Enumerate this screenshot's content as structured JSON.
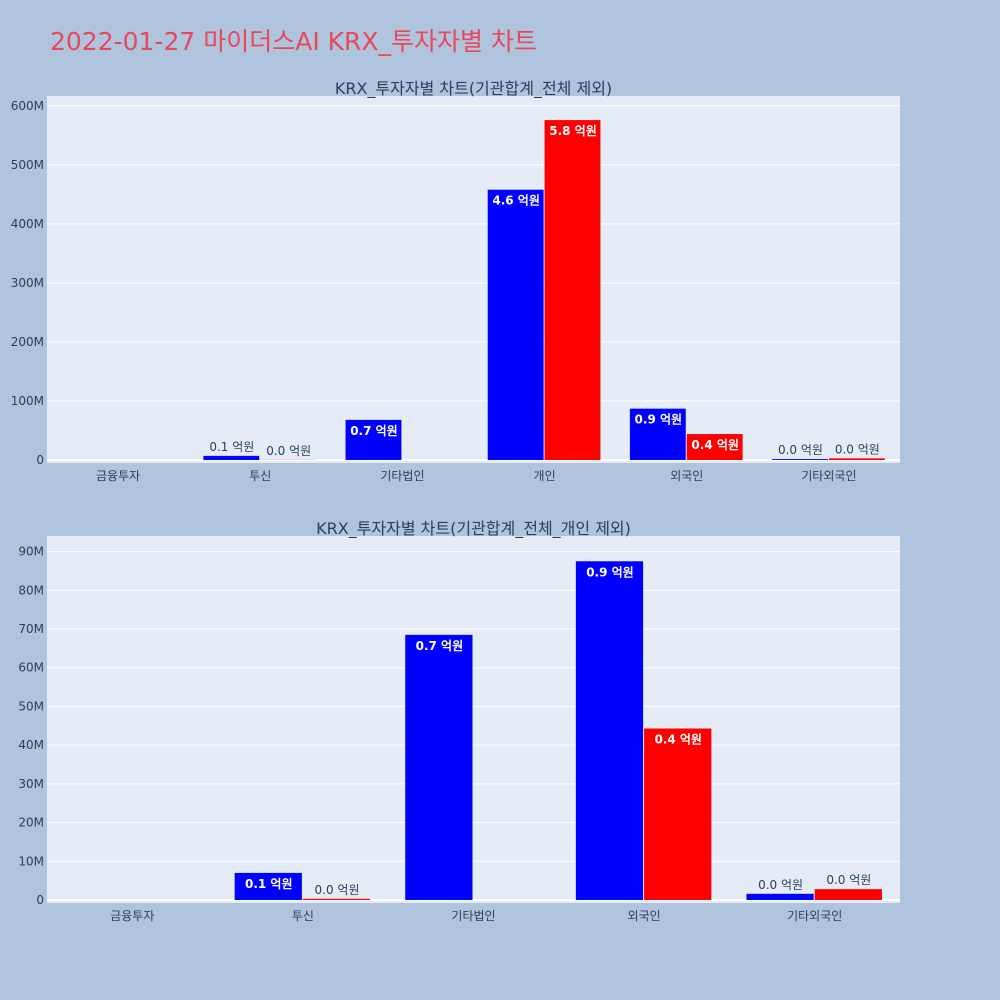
{
  "page_title": "2022-01-27 마이더스AI KRX_투자자별 차트",
  "colors": {
    "buy": "#0000ff",
    "sell": "#ff0000",
    "plot_bg": "#e5ecf6",
    "page_bg": "#b0c4de",
    "title": "#e8485c"
  },
  "chart_data": [
    {
      "type": "bar",
      "title": "KRX_투자자별 차트(기관합계_전체 제외)",
      "categories": [
        "금융투자",
        "투신",
        "기타법인",
        "개인",
        "외국인",
        "기타외국인"
      ],
      "series": [
        {
          "values": [
            0,
            7000000,
            68000000,
            458000000,
            87000000,
            1500000
          ],
          "labels": [
            "",
            "0.1 억원",
            "0.7 억원",
            "4.6 억원",
            "0.9 억원",
            "0.0 억원"
          ]
        },
        {
          "values": [
            0,
            300000,
            0,
            576000000,
            44000000,
            2800000
          ],
          "labels": [
            "",
            "0.0 억원",
            "",
            "5.8 억원",
            "0.4 억원",
            "0.0 억원"
          ]
        }
      ],
      "ylim": [
        0,
        610000000
      ],
      "yticks": [
        0,
        100000000,
        200000000,
        300000000,
        400000000,
        500000000,
        600000000
      ],
      "ytick_labels": [
        "0",
        "100M",
        "200M",
        "300M",
        "400M",
        "500M",
        "600M"
      ],
      "grid": true
    },
    {
      "type": "bar",
      "title": "KRX_투자자별 차트(기관합계_전체_개인 제외)",
      "categories": [
        "금융투자",
        "투신",
        "기타법인",
        "외국인",
        "기타외국인"
      ],
      "series": [
        {
          "values": [
            0,
            7000000,
            68500000,
            87500000,
            1600000
          ],
          "labels": [
            "",
            "0.1 억원",
            "0.7 억원",
            "0.9 억원",
            "0.0 억원"
          ]
        },
        {
          "values": [
            0,
            300000,
            0,
            44300000,
            2800000
          ],
          "labels": [
            "",
            "0.0 억원",
            "",
            "0.4 억원",
            "0.0 억원"
          ]
        }
      ],
      "ylim": [
        0,
        93000000
      ],
      "yticks": [
        0,
        10000000,
        20000000,
        30000000,
        40000000,
        50000000,
        60000000,
        70000000,
        80000000,
        90000000
      ],
      "ytick_labels": [
        "0",
        "10M",
        "20M",
        "30M",
        "40M",
        "50M",
        "60M",
        "70M",
        "80M",
        "90M"
      ],
      "grid": true
    }
  ]
}
